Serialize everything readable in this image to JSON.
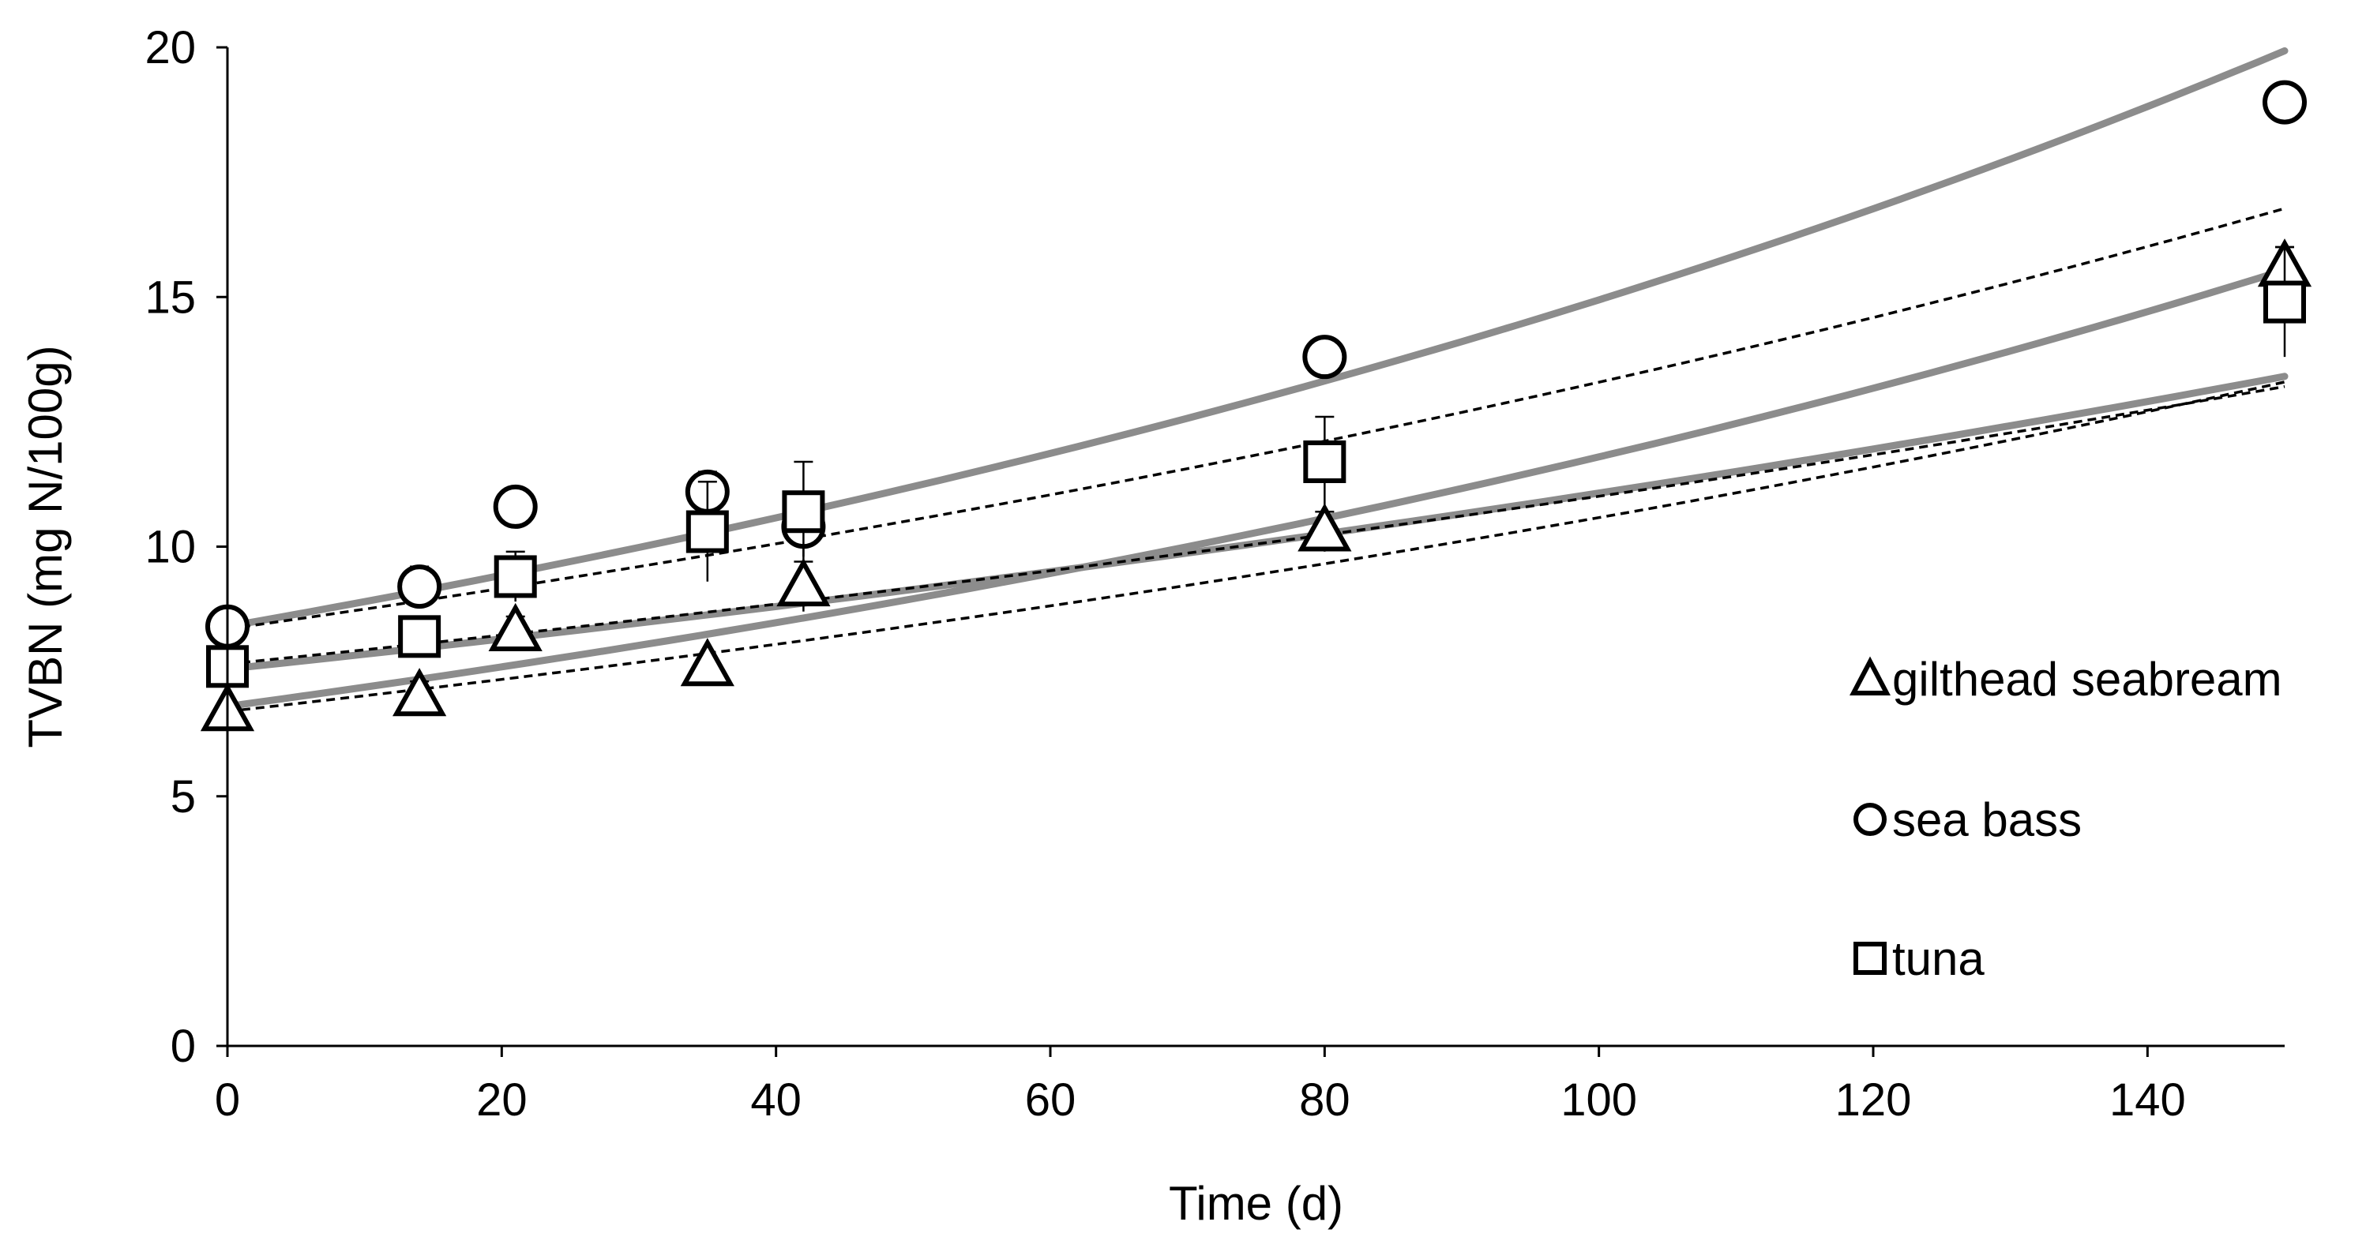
{
  "chart_data": {
    "type": "scatter",
    "title": "",
    "xlabel": "Time (d)",
    "ylabel": "TVBN (mg N/100g)",
    "xlim": [
      0,
      150
    ],
    "ylim": [
      0,
      20
    ],
    "xticks": [
      0,
      20,
      40,
      60,
      80,
      100,
      120,
      140
    ],
    "yticks": [
      0,
      5,
      10,
      15,
      20
    ],
    "grid": false,
    "legend_position": "right",
    "colors": {
      "fit_solid": "#8c8c8c",
      "fit_dashed": "#000000",
      "marker": "#000000"
    },
    "series": [
      {
        "name": "gilthead seabream",
        "marker": "triangle",
        "x": [
          0,
          14,
          21,
          35,
          42,
          80,
          150
        ],
        "y": [
          6.7,
          7.0,
          8.3,
          7.6,
          9.2,
          10.3,
          15.6
        ],
        "err": [
          0.2,
          0.3,
          0.3,
          0.2,
          0.5,
          0.4,
          0.4
        ],
        "fit_solid": {
          "y0": 6.8,
          "k": 0.00551
        },
        "fit_dashed": {
          "y0": 6.7,
          "k": 0.00457
        }
      },
      {
        "name": "sea bass",
        "marker": "circle",
        "x": [
          0,
          14,
          21,
          35,
          42,
          80,
          150
        ],
        "y": [
          8.4,
          9.2,
          10.8,
          11.1,
          10.4,
          13.8,
          18.9
        ],
        "err": [
          0.2,
          0.4,
          0.3,
          0.4,
          0.6,
          0.3,
          0.3
        ],
        "fit_solid": {
          "y0": 8.4,
          "k": 0.00576
        },
        "fit_dashed": {
          "y0": 8.35,
          "k": 0.00465
        }
      },
      {
        "name": "tuna",
        "marker": "square",
        "x": [
          0,
          14,
          21,
          35,
          42,
          80,
          150
        ],
        "y": [
          7.6,
          8.2,
          9.4,
          10.3,
          10.7,
          11.7,
          14.9
        ],
        "err": [
          0.3,
          0.4,
          0.5,
          1.0,
          1.0,
          0.9,
          1.1
        ],
        "fit_solid": {
          "y0": 7.55,
          "k": 0.00383
        },
        "fit_dashed": {
          "y0": 7.65,
          "k": 0.00364
        }
      }
    ]
  }
}
